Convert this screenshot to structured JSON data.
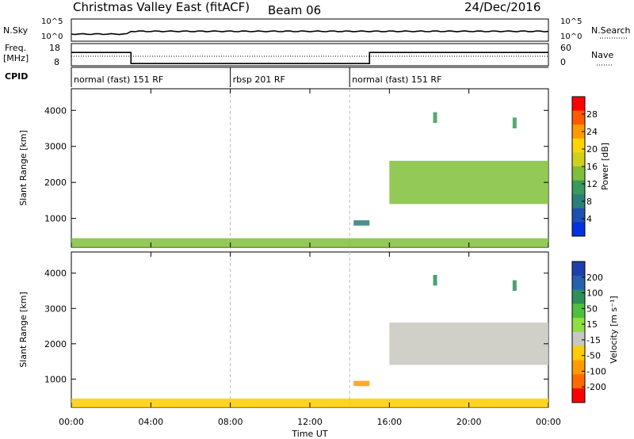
{
  "header": {
    "station": "Christmas Valley East (fitACF)",
    "beam": "Beam 06",
    "date": "24/Dec/2016"
  },
  "strip": {
    "nsky_label": "N.Sky",
    "nsearch_label": "N.Search",
    "nsky_ticks": [
      "10^5",
      "10^0"
    ],
    "nsearch_ticks": [
      "10^5",
      "10^0"
    ],
    "freq_label": "Freq.",
    "freq_unit": "[MHz]",
    "freq_ticks": [
      "18",
      "8"
    ],
    "nave_label": "Nave",
    "nave_ticks": [
      "60",
      "0"
    ],
    "cpid_label": "CPID",
    "cpid_segments": [
      {
        "text": "normal (fast) 151 RF",
        "start_hour": 0,
        "end_hour": 8
      },
      {
        "text": "rbsp 201 RF",
        "start_hour": 8,
        "end_hour": 14
      },
      {
        "text": "normal (fast) 151 RF",
        "start_hour": 14,
        "end_hour": 24
      }
    ]
  },
  "xaxis": {
    "label": "Time UT",
    "ticks": [
      "00:00",
      "04:00",
      "08:00",
      "12:00",
      "16:00",
      "20:00",
      "00:00"
    ]
  },
  "power_panel": {
    "ylabel": "Slant Range [km]",
    "colorbar_label": "Power [dB]",
    "colorbar_ticks": [
      "28",
      "24",
      "20",
      "16",
      "12",
      "8",
      "4"
    ],
    "colorbar_colors": [
      "#ff0000",
      "#ff5a00",
      "#ff9a00",
      "#ffd400",
      "#cfcf20",
      "#7fbf3a",
      "#3a9a5a",
      "#2a7f7a",
      "#1f4fb0",
      "#0033dd"
    ]
  },
  "velocity_panel": {
    "ylabel": "Slant Range [km]",
    "colorbar_label": "Velocity [m s⁻¹]",
    "colorbar_ticks": [
      "200",
      "100",
      "50",
      "15",
      "-15",
      "-50",
      "-100",
      "-200"
    ],
    "colorbar_colors": [
      "#1f3fae",
      "#2860b0",
      "#2f8f5a",
      "#4fbf3f",
      "#8fdf3f",
      "#c8c8c0",
      "#ffcc00",
      "#ff9a00",
      "#ff6a00",
      "#ff0000"
    ]
  },
  "chart_data": {
    "type": "heatmap",
    "x_unit": "hour UT",
    "xlim": [
      0,
      24
    ],
    "ylim": [
      200,
      4600
    ],
    "y_ticks": [
      1000,
      2000,
      3000,
      4000
    ],
    "frequency_mhz": [
      {
        "start_hour": 0,
        "end_hour": 3,
        "value": 14
      },
      {
        "start_hour": 3,
        "end_hour": 15,
        "value": 9
      },
      {
        "start_hour": 15,
        "end_hour": 24,
        "value": 14
      }
    ],
    "power_regions": [
      {
        "start_hour": 0,
        "end_hour": 24,
        "range_km": [
          200,
          450
        ],
        "power_db": 14
      },
      {
        "start_hour": 14.2,
        "end_hour": 15.0,
        "range_km": [
          800,
          950
        ],
        "power_db": 8
      },
      {
        "start_hour": 16.0,
        "end_hour": 24,
        "range_km": [
          1400,
          2600
        ],
        "power_db": 16
      },
      {
        "start_hour": 18.2,
        "end_hour": 18.4,
        "range_km": [
          3650,
          3950
        ],
        "power_db": 12
      },
      {
        "start_hour": 22.2,
        "end_hour": 22.4,
        "range_km": [
          3500,
          3800
        ],
        "power_db": 12
      }
    ],
    "velocity_regions": [
      {
        "start_hour": 0,
        "end_hour": 24,
        "range_km": [
          200,
          450
        ],
        "velocity_ms": -40
      },
      {
        "start_hour": 14.2,
        "end_hour": 15.0,
        "range_km": [
          800,
          950
        ],
        "velocity_ms": -60
      },
      {
        "start_hour": 16.0,
        "end_hour": 24,
        "range_km": [
          1400,
          2600
        ],
        "velocity_ms": 0
      },
      {
        "start_hour": 18.2,
        "end_hour": 18.4,
        "range_km": [
          3650,
          3950
        ],
        "velocity_ms": 120
      },
      {
        "start_hour": 22.2,
        "end_hour": 22.4,
        "range_km": [
          3500,
          3800
        ],
        "velocity_ms": 120
      }
    ]
  }
}
